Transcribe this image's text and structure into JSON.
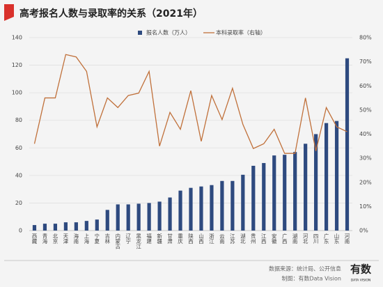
{
  "chart_data": {
    "type": "bar",
    "title": "高考报名人数与录取率的关系（2021年）",
    "categories": [
      "西藏",
      "青海",
      "北京",
      "天津",
      "海南",
      "上海",
      "宁夏",
      "吉林",
      "内蒙古",
      "辽宁",
      "黑龙江",
      "福建",
      "新疆",
      "甘肃",
      "重庆",
      "陕西",
      "山西",
      "浙江",
      "云南",
      "江苏",
      "湖北",
      "贵州",
      "江西",
      "安徽",
      "广西",
      "湖南",
      "河北",
      "四川",
      "广东",
      "山东",
      "河南"
    ],
    "series": [
      {
        "name": "报名人数（万人）",
        "color": "#2e4a7f",
        "type": "bar",
        "values": [
          4,
          5,
          5,
          6,
          6,
          7,
          8,
          15,
          19,
          19,
          19.5,
          20,
          21,
          24,
          29,
          31,
          32,
          33,
          36,
          36,
          40.5,
          47,
          49,
          54.5,
          55,
          57,
          63,
          70,
          78,
          79.5,
          125
        ]
      },
      {
        "name": "本科录取率（右轴）",
        "color": "#c0703a",
        "type": "line",
        "axis": "y2",
        "values": [
          36,
          55,
          55,
          73,
          72,
          66,
          43,
          55,
          51,
          56,
          57,
          66,
          35,
          49,
          42,
          58,
          37,
          56,
          46,
          59,
          44,
          34,
          36,
          42,
          32,
          32,
          55,
          33,
          51,
          43,
          41
        ]
      }
    ],
    "ylim": [
      0,
      140
    ],
    "yticks": [
      0,
      20,
      40,
      60,
      80,
      100,
      120,
      140
    ],
    "y2lim": [
      0,
      80
    ],
    "y2ticks": [
      {
        "value": 0,
        "label": "0%"
      },
      {
        "value": 10,
        "label": "10%"
      },
      {
        "value": 20,
        "label": "20%"
      },
      {
        "value": 30,
        "label": "30%"
      },
      {
        "value": 40,
        "label": "40%"
      },
      {
        "value": 50,
        "label": "50%"
      },
      {
        "value": 60,
        "label": "60%"
      },
      {
        "value": 70,
        "label": "70%"
      },
      {
        "value": 80,
        "label": "80%"
      }
    ],
    "grid": true
  },
  "footer": {
    "source": "数据来源：统计局、公开信息",
    "credit": "制图：有数Data Vision"
  },
  "logo": {
    "text": "有数",
    "sub": "DATA VISION"
  }
}
